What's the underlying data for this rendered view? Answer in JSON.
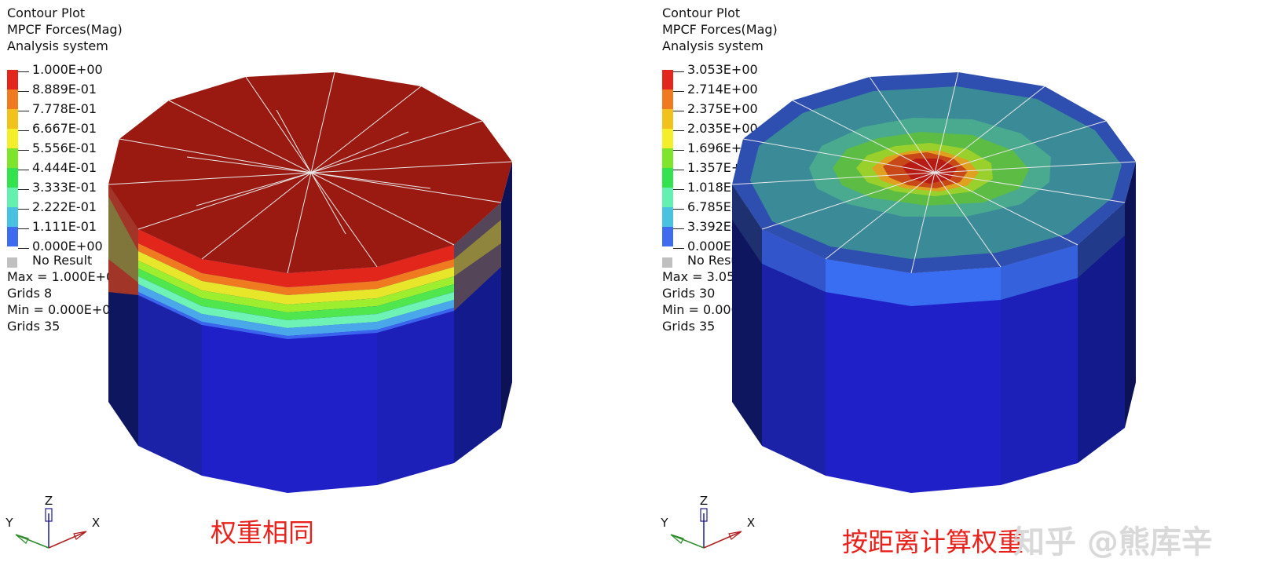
{
  "panels": [
    {
      "header": [
        "Contour Plot",
        "MPCF Forces(Mag)",
        "Analysis system"
      ],
      "legend_values": [
        "1.000E+00",
        "8.889E-01",
        "7.778E-01",
        "6.667E-01",
        "5.556E-01",
        "4.444E-01",
        "3.333E-01",
        "2.222E-01",
        "1.111E-01",
        "0.000E+00"
      ],
      "no_result": "No Result",
      "stats": [
        "Max =  1.000E+00",
        "Grids 8",
        "Min =  0.000E+00",
        "Grids 35"
      ],
      "caption": "权重相同"
    },
    {
      "header": [
        "Contour Plot",
        "MPCF Forces(Mag)",
        "Analysis system"
      ],
      "legend_values": [
        "3.053E+00",
        "2.714E+00",
        "2.375E+00",
        "2.035E+00",
        "1.696E+00",
        "1.357E+00",
        "1.018E+00",
        "6.785E-01",
        "3.392E-01",
        "0.000E+00"
      ],
      "no_result": "No Result",
      "stats": [
        "Max =  3.053E+00",
        "Grids 30",
        "Min =  0.000E+00",
        "Grids 35"
      ],
      "caption": "按距离计算权重"
    }
  ],
  "legend_colors": [
    "#e3261c",
    "#f07a1f",
    "#f1c21c",
    "#f5ee2a",
    "#7ee52c",
    "#32e34f",
    "#64f0b0",
    "#49c2e2",
    "#3e6bf0",
    "#2020c8"
  ],
  "axis_labels": {
    "z": "Z",
    "y": "Y",
    "x": "X"
  },
  "watermark": "知乎 @熊库辛"
}
